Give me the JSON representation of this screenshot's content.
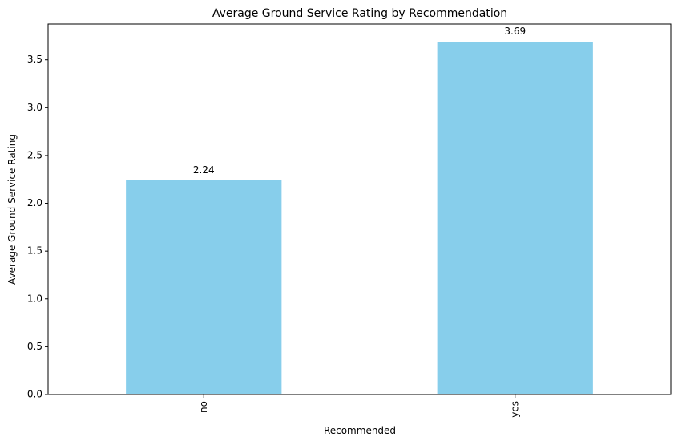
{
  "chart_data": {
    "type": "bar",
    "title": "Average Ground Service Rating by Recommendation",
    "xlabel": "Recommended",
    "ylabel": "Average Ground Service Rating",
    "categories": [
      "no",
      "yes"
    ],
    "values": [
      2.24,
      3.69
    ],
    "value_labels": [
      "2.24",
      "3.69"
    ],
    "ylim": [
      0,
      3.875
    ],
    "yticks": [
      0.0,
      0.5,
      1.0,
      1.5,
      2.0,
      2.5,
      3.0,
      3.5
    ],
    "ytick_labels": [
      "0.0",
      "0.5",
      "1.0",
      "1.5",
      "2.0",
      "2.5",
      "3.0",
      "3.5"
    ],
    "bar_color": "#87CEEB",
    "grid": false,
    "legend": "none"
  }
}
